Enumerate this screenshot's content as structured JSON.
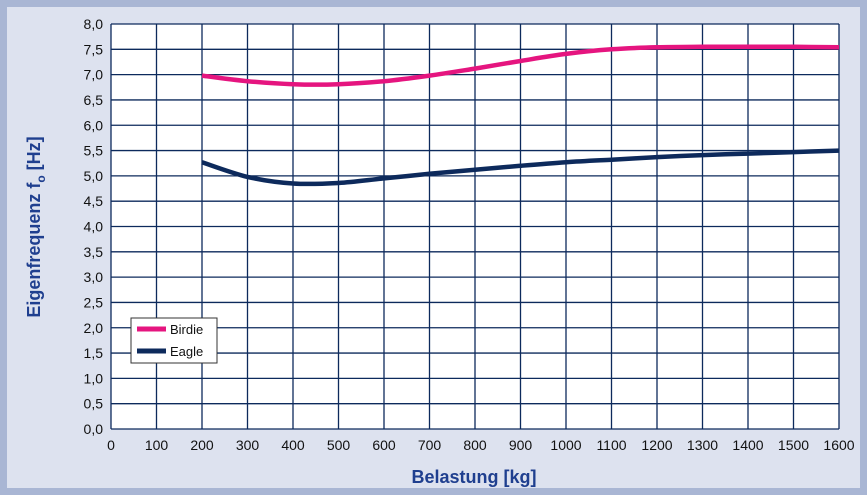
{
  "chart_data": {
    "type": "line",
    "xlabel": "Belastung [kg]",
    "ylabel_main": "Eigenfrequenz f",
    "ylabel_sub": "o",
    "ylabel_unit": " [Hz]",
    "xlim": [
      0,
      1600
    ],
    "ylim": [
      0,
      8
    ],
    "grid": true,
    "legend_placement": "lower-left",
    "x_tick_labels": [
      "0",
      "100",
      "200",
      "300",
      "400",
      "500",
      "600",
      "700",
      "800",
      "900",
      "1000",
      "1100",
      "1200",
      "1300",
      "1400",
      "1500",
      "1600"
    ],
    "y_tick_labels": [
      "0,0",
      "0,5",
      "1,0",
      "1,5",
      "2,0",
      "2,5",
      "3,0",
      "3,5",
      "4,0",
      "4,5",
      "5,0",
      "5,5",
      "6,0",
      "6,5",
      "7,0",
      "7,5",
      "8,0"
    ],
    "colors": {
      "plot_bg": "#ffffff",
      "grid": "#0d2a5c",
      "frame_outer": "#a9b6d4",
      "frame_inner": "#dde2ef"
    },
    "series": [
      {
        "name": "Birdie",
        "color": "#e5157f",
        "x": [
          200,
          300,
          400,
          500,
          600,
          700,
          800,
          900,
          1000,
          1100,
          1200,
          1300,
          1400,
          1500,
          1600
        ],
        "y": [
          6.98,
          6.87,
          6.81,
          6.81,
          6.87,
          6.98,
          7.12,
          7.27,
          7.41,
          7.5,
          7.54,
          7.55,
          7.55,
          7.55,
          7.54
        ]
      },
      {
        "name": "Eagle",
        "color": "#0d2a5c",
        "x": [
          200,
          300,
          400,
          500,
          600,
          700,
          800,
          900,
          1000,
          1100,
          1200,
          1300,
          1400,
          1500,
          1600
        ],
        "y": [
          5.27,
          4.98,
          4.85,
          4.86,
          4.95,
          5.04,
          5.12,
          5.2,
          5.27,
          5.32,
          5.37,
          5.41,
          5.44,
          5.47,
          5.5
        ]
      }
    ]
  }
}
